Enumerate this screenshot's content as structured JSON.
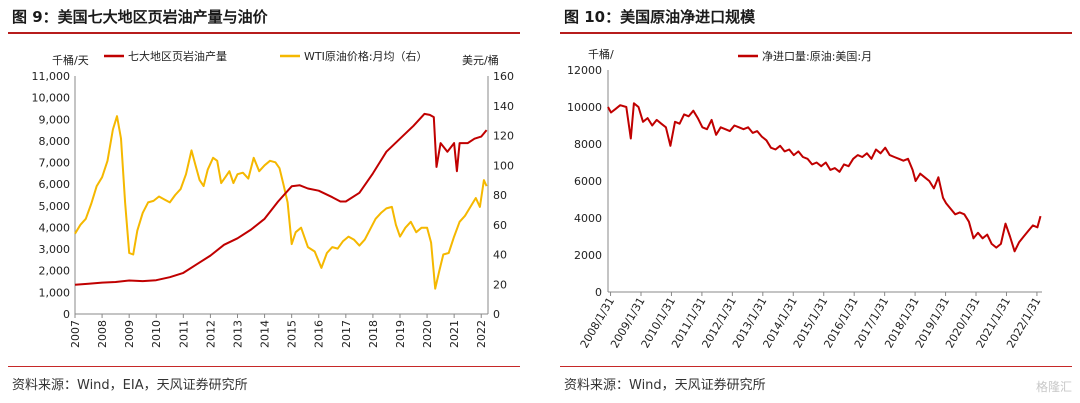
{
  "left": {
    "title": "图 9：美国七大地区页岩油产量与油价",
    "source": "资料来源：Wind，EIA，天风证券研究所",
    "chart_data": {
      "type": "line",
      "title": "",
      "y_unit_left": "千桶/天",
      "y_unit_right": "美元/桶",
      "ylim_left": [
        0,
        11000
      ],
      "yticks_left": [
        "0",
        "1,000",
        "2,000",
        "3,000",
        "4,000",
        "5,000",
        "6,000",
        "7,000",
        "8,000",
        "9,000",
        "10,000",
        "11,000"
      ],
      "ylim_right": [
        0,
        160
      ],
      "yticks_right": [
        "0",
        "20",
        "40",
        "60",
        "80",
        "100",
        "120",
        "140",
        "160"
      ],
      "xlim": [
        2007,
        2022.25
      ],
      "x_tick_labels": [
        "2007",
        "2008",
        "2009",
        "2010",
        "2011",
        "2012",
        "2013",
        "2014",
        "2015",
        "2016",
        "2017",
        "2018",
        "2019",
        "2020",
        "2021",
        "2022"
      ],
      "legend_position": "top",
      "series": [
        {
          "name": "七大地区页岩油产量",
          "axis": "left",
          "color": "#c00000",
          "x": [
            2007,
            2007.5,
            2008,
            2008.5,
            2009,
            2009.5,
            2010,
            2010.5,
            2011,
            2011.5,
            2012,
            2012.5,
            2013,
            2013.5,
            2014,
            2014.5,
            2015,
            2015.3,
            2015.6,
            2016,
            2016.5,
            2016.8,
            2017,
            2017.5,
            2018,
            2018.5,
            2019,
            2019.5,
            2019.9,
            2020.1,
            2020.25,
            2020.35,
            2020.5,
            2020.75,
            2021,
            2021.1,
            2021.2,
            2021.5,
            2021.75,
            2022,
            2022.2
          ],
          "y": [
            1350,
            1400,
            1450,
            1480,
            1550,
            1520,
            1560,
            1700,
            1900,
            2300,
            2700,
            3200,
            3500,
            3900,
            4400,
            5200,
            5900,
            5950,
            5800,
            5700,
            5400,
            5200,
            5200,
            5600,
            6500,
            7500,
            8100,
            8700,
            9250,
            9200,
            9100,
            6800,
            7900,
            7500,
            7900,
            6600,
            7900,
            7900,
            8100,
            8200,
            8500
          ]
        },
        {
          "name": "WTI原油价格:月均（右）",
          "axis": "right",
          "color": "#f5b800",
          "x": [
            2007,
            2007.2,
            2007.4,
            2007.6,
            2007.8,
            2008,
            2008.2,
            2008.4,
            2008.55,
            2008.7,
            2008.85,
            2009,
            2009.15,
            2009.3,
            2009.5,
            2009.7,
            2009.9,
            2010.1,
            2010.3,
            2010.5,
            2010.7,
            2010.9,
            2011.1,
            2011.3,
            2011.45,
            2011.6,
            2011.75,
            2011.9,
            2012.1,
            2012.25,
            2012.4,
            2012.55,
            2012.7,
            2012.85,
            2013,
            2013.2,
            2013.4,
            2013.6,
            2013.8,
            2014,
            2014.2,
            2014.4,
            2014.55,
            2014.7,
            2014.85,
            2015,
            2015.15,
            2015.35,
            2015.6,
            2015.85,
            2016.1,
            2016.3,
            2016.5,
            2016.7,
            2016.9,
            2017.1,
            2017.3,
            2017.5,
            2017.7,
            2017.9,
            2018.1,
            2018.3,
            2018.5,
            2018.7,
            2018.85,
            2019,
            2019.2,
            2019.4,
            2019.6,
            2019.8,
            2020,
            2020.15,
            2020.3,
            2020.45,
            2020.6,
            2020.8,
            2021,
            2021.2,
            2021.4,
            2021.6,
            2021.8,
            2021.95,
            2022.1,
            2022.2
          ],
          "y": [
            54,
            60,
            64,
            74,
            86,
            92,
            103,
            124,
            133,
            118,
            75,
            41,
            40,
            56,
            68,
            75,
            76,
            79,
            77,
            75,
            80,
            84,
            94,
            110,
            100,
            90,
            86,
            97,
            105,
            103,
            88,
            92,
            96,
            88,
            94,
            95,
            91,
            105,
            96,
            100,
            103,
            102,
            98,
            87,
            75,
            47,
            55,
            58,
            45,
            42,
            31,
            41,
            45,
            44,
            49,
            52,
            50,
            46,
            50,
            57,
            64,
            68,
            71,
            72,
            60,
            52,
            58,
            62,
            55,
            58,
            58,
            48,
            17,
            29,
            40,
            41,
            52,
            62,
            66,
            72,
            78,
            72,
            90,
            86
          ]
        }
      ]
    }
  },
  "right": {
    "title": "图 10：美国原油净进口规模",
    "source": "资料来源：Wind，天风证券研究所",
    "chart_data": {
      "type": "line",
      "title": "",
      "y_unit_left": "千桶/",
      "ylim": [
        0,
        12000
      ],
      "yticks": [
        "0",
        "2000",
        "4000",
        "6000",
        "8000",
        "10000",
        "12000"
      ],
      "xlim": [
        2008,
        2022.25
      ],
      "x_tick_labels": [
        "2008/1/31",
        "2009/1/31",
        "2010/1/31",
        "2011/1/31",
        "2012/1/31",
        "2013/1/31",
        "2014/1/31",
        "2015/1/31",
        "2016/1/31",
        "2017/1/31",
        "2018/1/31",
        "2019/1/31",
        "2020/1/31",
        "2021/1/31",
        "2022/1/31"
      ],
      "legend_position": "top",
      "series": [
        {
          "name": "净进口量:原油:美国:月",
          "color": "#c00000",
          "x": [
            2008,
            2008.1,
            2008.25,
            2008.4,
            2008.6,
            2008.75,
            2008.85,
            2009,
            2009.15,
            2009.3,
            2009.45,
            2009.6,
            2009.75,
            2009.9,
            2010.05,
            2010.2,
            2010.35,
            2010.5,
            2010.65,
            2010.8,
            2010.95,
            2011.1,
            2011.25,
            2011.4,
            2011.55,
            2011.7,
            2011.85,
            2012,
            2012.15,
            2012.3,
            2012.45,
            2012.6,
            2012.75,
            2012.9,
            2013.05,
            2013.2,
            2013.35,
            2013.5,
            2013.65,
            2013.8,
            2013.95,
            2014.1,
            2014.25,
            2014.4,
            2014.55,
            2014.7,
            2014.85,
            2015,
            2015.15,
            2015.3,
            2015.45,
            2015.6,
            2015.75,
            2015.9,
            2016.05,
            2016.2,
            2016.35,
            2016.5,
            2016.65,
            2016.8,
            2016.95,
            2017.1,
            2017.25,
            2017.4,
            2017.55,
            2017.7,
            2017.85,
            2018,
            2018.1,
            2018.25,
            2018.4,
            2018.55,
            2018.7,
            2018.85,
            2019,
            2019.1,
            2019.25,
            2019.4,
            2019.55,
            2019.7,
            2019.85,
            2020,
            2020.15,
            2020.3,
            2020.45,
            2020.6,
            2020.75,
            2020.9,
            2021.05,
            2021.2,
            2021.35,
            2021.5,
            2021.65,
            2021.8,
            2021.95,
            2022.1,
            2022.2
          ],
          "y": [
            10000,
            9700,
            9900,
            10100,
            10000,
            8300,
            10200,
            10000,
            9200,
            9400,
            9000,
            9300,
            9100,
            8900,
            7900,
            9200,
            9100,
            9600,
            9500,
            9800,
            9400,
            8900,
            8800,
            9300,
            8500,
            8900,
            8800,
            8700,
            9000,
            8900,
            8800,
            8900,
            8600,
            8700,
            8400,
            8200,
            7800,
            7700,
            7900,
            7600,
            7700,
            7400,
            7600,
            7300,
            7200,
            6900,
            7000,
            6800,
            7000,
            6600,
            6700,
            6500,
            6900,
            6800,
            7200,
            7400,
            7300,
            7500,
            7200,
            7700,
            7500,
            7800,
            7400,
            7300,
            7200,
            7100,
            7200,
            6600,
            6000,
            6400,
            6200,
            6000,
            5600,
            6200,
            5100,
            4800,
            4500,
            4200,
            4300,
            4200,
            3800,
            2900,
            3200,
            2900,
            3100,
            2600,
            2400,
            2600,
            3700,
            3000,
            2200,
            2700,
            3000,
            3300,
            3600,
            3500,
            4100
          ]
        }
      ]
    }
  },
  "watermark": "格隆汇"
}
